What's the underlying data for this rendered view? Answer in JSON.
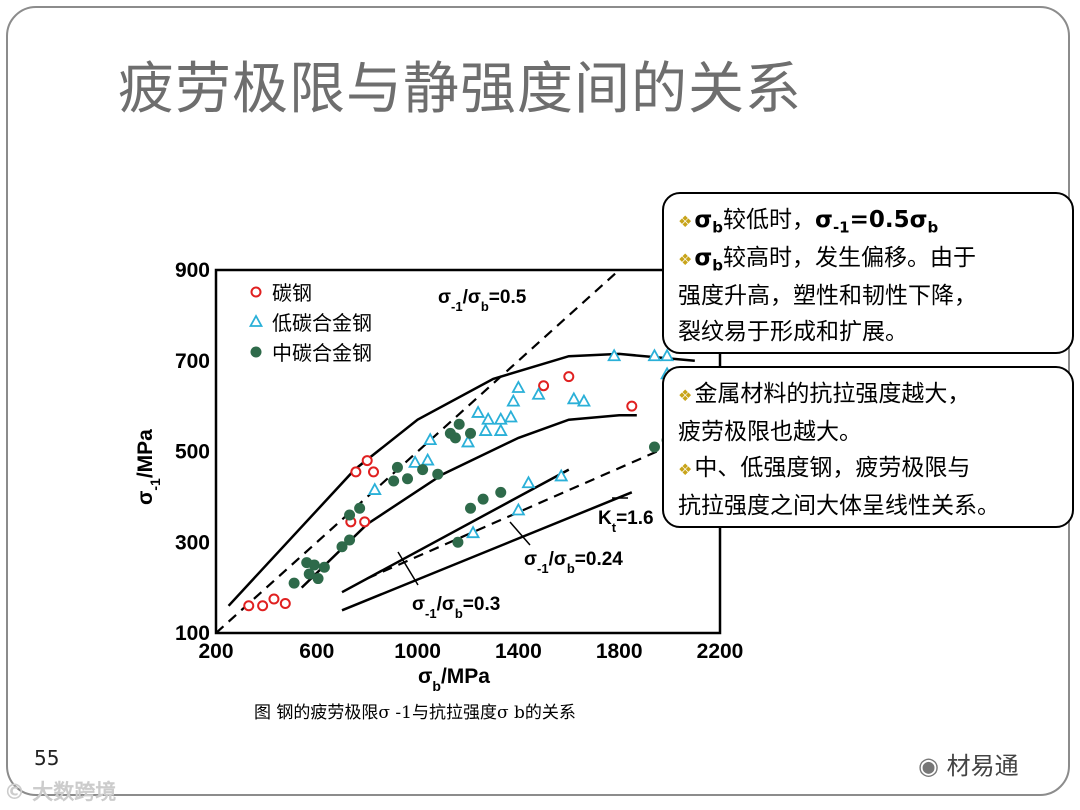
{
  "slide": {
    "title": "疲劳极限与静强度间的关系",
    "page_number": "55",
    "watermark_left": "© 大数跨境",
    "watermark_right": "材易通",
    "caption": "图  钢的疲劳极限σ -1与抗拉强度σ b的关系"
  },
  "box1": {
    "line1_text": "较低时，",
    "line2_text": "较高时，发生偏移。由于",
    "line3_text": "强度升高，塑性和韧性下降，",
    "line4_text": "裂纹易于形成和扩展。"
  },
  "box2": {
    "line1": "金属材料的抗拉强度越大，",
    "line2": "疲劳极限也越大。",
    "line3": "中、低强度钢，疲劳极限与",
    "line4": "抗拉强度之间大体呈线性关系。"
  },
  "chart_data": {
    "type": "scatter",
    "xlabel": "σb/MPa",
    "ylabel": "σ-1/MPa",
    "xlim": [
      200,
      2200
    ],
    "ylim": [
      100,
      900
    ],
    "x_ticks": [
      200,
      600,
      1000,
      1400,
      1800,
      2200
    ],
    "y_ticks": [
      100,
      300,
      500,
      700,
      900
    ],
    "legend_position": "top-left",
    "series": [
      {
        "name": "碳钢",
        "marker": "open-circle",
        "color": "#e02020",
        "points": [
          [
            330,
            160
          ],
          [
            385,
            160
          ],
          [
            430,
            175
          ],
          [
            475,
            165
          ],
          [
            735,
            345
          ],
          [
            790,
            345
          ],
          [
            755,
            455
          ],
          [
            800,
            480
          ],
          [
            825,
            455
          ],
          [
            1500,
            645
          ],
          [
            1600,
            665
          ],
          [
            1850,
            600
          ]
        ]
      },
      {
        "name": "低碳合金钢",
        "marker": "open-triangle",
        "color": "#2ab0d8",
        "points": [
          [
            830,
            415
          ],
          [
            990,
            475
          ],
          [
            1040,
            480
          ],
          [
            1050,
            525
          ],
          [
            1200,
            520
          ],
          [
            1240,
            585
          ],
          [
            1270,
            545
          ],
          [
            1280,
            570
          ],
          [
            1330,
            570
          ],
          [
            1330,
            545
          ],
          [
            1370,
            575
          ],
          [
            1380,
            610
          ],
          [
            1400,
            640
          ],
          [
            1480,
            625
          ],
          [
            1440,
            430
          ],
          [
            1400,
            370
          ],
          [
            1220,
            320
          ],
          [
            1570,
            445
          ],
          [
            1620,
            615
          ],
          [
            1660,
            610
          ],
          [
            1780,
            710
          ],
          [
            1940,
            710
          ],
          [
            1990,
            710
          ],
          [
            1990,
            670
          ]
        ]
      },
      {
        "name": "中碳合金钢",
        "marker": "filled-circle",
        "color": "#2e6a4a",
        "points": [
          [
            510,
            210
          ],
          [
            560,
            255
          ],
          [
            570,
            230
          ],
          [
            590,
            250
          ],
          [
            605,
            220
          ],
          [
            630,
            245
          ],
          [
            700,
            290
          ],
          [
            730,
            305
          ],
          [
            730,
            360
          ],
          [
            770,
            375
          ],
          [
            905,
            435
          ],
          [
            920,
            465
          ],
          [
            960,
            440
          ],
          [
            1020,
            460
          ],
          [
            1080,
            450
          ],
          [
            1130,
            540
          ],
          [
            1150,
            530
          ],
          [
            1165,
            560
          ],
          [
            1210,
            540
          ],
          [
            1160,
            300
          ],
          [
            1210,
            375
          ],
          [
            1260,
            395
          ],
          [
            1330,
            410
          ],
          [
            1940,
            510
          ],
          [
            1990,
            525
          ]
        ]
      }
    ],
    "annotations": [
      "σ-1/σb=0.5",
      "σ-1/σb=0.24",
      "σ-1/σb=0.3",
      "Kt=1.6"
    ]
  }
}
